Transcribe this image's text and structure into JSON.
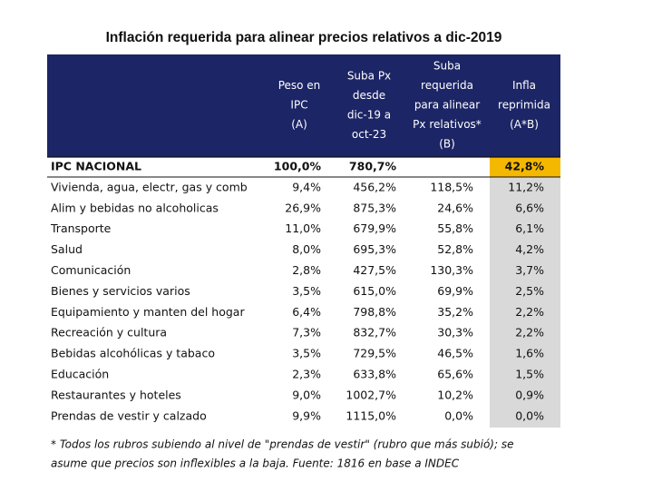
{
  "title": "Inflación requerida para alinear precios relativos a dic-2019",
  "table": {
    "headers": [
      [],
      [
        "Peso en",
        "IPC",
        "(A)"
      ],
      [
        "Suba Px",
        "desde",
        "dic-19 a",
        "oct-23"
      ],
      [
        "Suba",
        "requerida",
        "para alinear",
        "Px relativos*",
        "(B)"
      ],
      [
        "Infla",
        "reprimida",
        "(A*B)"
      ]
    ],
    "rows": [
      [
        "IPC NACIONAL",
        "100,0%",
        "780,7%",
        "",
        "42,8%"
      ],
      [
        "Vivienda, agua, electr, gas y comb",
        "9,4%",
        "456,2%",
        "118,5%",
        "11,2%"
      ],
      [
        "Alim y bebidas no alcoholicas",
        "26,9%",
        "875,3%",
        "24,6%",
        "6,6%"
      ],
      [
        "Transporte",
        "11,0%",
        "679,9%",
        "55,8%",
        "6,1%"
      ],
      [
        "Salud",
        "8,0%",
        "695,3%",
        "52,8%",
        "4,2%"
      ],
      [
        "Comunicación",
        "2,8%",
        "427,5%",
        "130,3%",
        "3,7%"
      ],
      [
        "Bienes y servicios varios",
        "3,5%",
        "615,0%",
        "69,9%",
        "2,5%"
      ],
      [
        "Equipamiento y manten del hogar",
        "6,4%",
        "798,8%",
        "35,2%",
        "2,2%"
      ],
      [
        "Recreación y cultura",
        "7,3%",
        "832,7%",
        "30,3%",
        "2,2%"
      ],
      [
        "Bebidas alcohólicas y tabaco",
        "3,5%",
        "729,5%",
        "46,5%",
        "1,6%"
      ],
      [
        "Educación",
        "2,3%",
        "633,8%",
        "65,6%",
        "1,5%"
      ],
      [
        "Restaurantes y hoteles",
        "9,0%",
        "1002,7%",
        "10,2%",
        "0,9%"
      ],
      [
        "Prendas de vestir y calzado",
        "9,9%",
        "1115,0%",
        "0,0%",
        "0,0%"
      ]
    ]
  },
  "footnote": [
    "* Todos los rubros subiendo al nivel de \"prendas de vestir\" (rubro que más subió); se",
    "asume que precios son inflexibles a la baja. Fuente: 1816 en base a INDEC"
  ]
}
